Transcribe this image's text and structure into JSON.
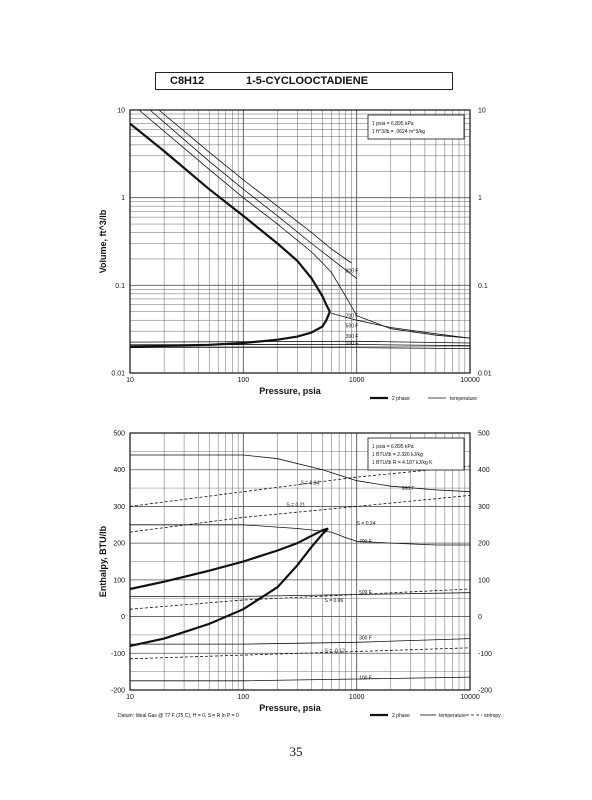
{
  "header": {
    "formula": "C8H12",
    "name": "1-5-CYCLOOCTADIENE"
  },
  "page_number": "35",
  "legend_labels": {
    "two_phase": "2 phase",
    "temperature": "temperature",
    "entropy": "entropy"
  },
  "icon_style": {
    "line_color": "#111111",
    "grid_color": "#555555"
  },
  "chart_data": [
    {
      "type": "line",
      "xlabel": "Pressure, psia",
      "ylabel": "Volume, ft^3/lb",
      "xscale": "log",
      "yscale": "log",
      "xlim": [
        10,
        10000
      ],
      "ylim": [
        0.01,
        10
      ],
      "grid": true,
      "x_ticks": [
        "10",
        "100",
        "1000",
        "10000"
      ],
      "y_ticks": [
        "0.01",
        "0.1",
        "1",
        "10"
      ],
      "y_ticks_right": [
        "0.01",
        "0.1",
        "1",
        "10"
      ],
      "note": [
        "1 psia = 6.895 kPa",
        "1 ft^3/lb = .0624 m^3/kg"
      ],
      "series": [
        {
          "name": "",
          "style": "bold",
          "x": [
            10,
            20,
            50,
            100,
            200,
            300,
            400,
            500,
            540,
            580
          ],
          "y": [
            7.0,
            3.4,
            1.25,
            0.62,
            0.3,
            0.19,
            0.12,
            0.075,
            0.06,
            0.05
          ]
        },
        {
          "name": "",
          "style": "bold",
          "x": [
            10,
            50,
            100,
            200,
            300,
            400,
            500,
            540,
            580
          ],
          "y": [
            0.02,
            0.021,
            0.022,
            0.024,
            0.026,
            0.029,
            0.034,
            0.04,
            0.05
          ]
        },
        {
          "name": "",
          "style": "thin",
          "x": [
            12,
            50,
            100,
            200,
            400,
            500,
            600,
            700,
            800,
            1000,
            2000,
            5000,
            10000
          ],
          "y": [
            10,
            2.1,
            1.0,
            0.5,
            0.24,
            0.18,
            0.14,
            0.1,
            0.075,
            0.045,
            0.032,
            0.027,
            0.025
          ]
        },
        {
          "name": "",
          "style": "thin",
          "x": [
            15,
            50,
            100,
            200,
            400,
            600,
            800,
            1000
          ],
          "y": [
            10,
            2.6,
            1.25,
            0.62,
            0.3,
            0.2,
            0.15,
            0.12
          ]
        },
        {
          "name": "",
          "style": "thin",
          "x": [
            18,
            50,
            100,
            200,
            400,
            600,
            900
          ],
          "y": [
            10,
            3.3,
            1.6,
            0.8,
            0.4,
            0.26,
            0.18
          ]
        },
        {
          "name": "",
          "style": "thin",
          "x": [
            600,
            1000,
            2000,
            5000,
            10000
          ],
          "y": [
            0.048,
            0.04,
            0.033,
            0.028,
            0.025
          ]
        },
        {
          "name": "",
          "style": "thin",
          "x": [
            10,
            1000,
            3000,
            10000
          ],
          "y": [
            0.0225,
            0.023,
            0.0225,
            0.022
          ]
        },
        {
          "name": "",
          "style": "thin",
          "x": [
            10,
            1000,
            3000,
            10000
          ],
          "y": [
            0.021,
            0.0212,
            0.0208,
            0.0205
          ]
        },
        {
          "name": "",
          "style": "thin",
          "x": [
            10,
            1000,
            10000
          ],
          "y": [
            0.0195,
            0.0195,
            0.019
          ]
        }
      ],
      "annotations": [
        {
          "text": "800 F",
          "x": 800,
          "y": 0.14
        },
        {
          "text": "700 F",
          "x": 800,
          "y": 0.043
        },
        {
          "text": "500 F",
          "x": 800,
          "y": 0.033
        },
        {
          "text": "300 F",
          "x": 800,
          "y": 0.025
        },
        {
          "text": "100 F",
          "x": 800,
          "y": 0.021
        }
      ]
    },
    {
      "type": "line",
      "xlabel": "Pressure, psia",
      "ylabel": "Enthalpy, BTU/lb",
      "xscale": "log",
      "yscale": "linear",
      "xlim": [
        10,
        10000
      ],
      "ylim": [
        -200,
        500
      ],
      "grid": true,
      "x_ticks": [
        "10",
        "100",
        "1000",
        "10000"
      ],
      "y_ticks": [
        "-200",
        "-100",
        "0",
        "100",
        "200",
        "300",
        "400",
        "500"
      ],
      "y_ticks_right": [
        "-200",
        "-100",
        "0",
        "100",
        "200",
        "300",
        "400",
        "500"
      ],
      "note": [
        "1 psia = 6.895 kPa",
        "1 BTU/lb = 2.326 kJ/kg",
        "1 BTU/lb R = 4.187 kJ/kg K"
      ],
      "datum_note": "Datum: Ideal Gas @ 77 F (25 C), H = 0, S = R ln P = 0",
      "series": [
        {
          "name": "",
          "style": "bold",
          "x": [
            10,
            20,
            50,
            100,
            200,
            300,
            400,
            500,
            560
          ],
          "y": [
            75,
            95,
            125,
            150,
            180,
            200,
            220,
            235,
            240
          ]
        },
        {
          "name": "",
          "style": "bold",
          "x": [
            10,
            20,
            50,
            100,
            200,
            300,
            400,
            500,
            560
          ],
          "y": [
            -80,
            -60,
            -20,
            20,
            80,
            140,
            190,
            225,
            240
          ]
        },
        {
          "name": "",
          "style": "thin",
          "x": [
            10,
            100,
            200,
            500,
            1000,
            2000,
            5000,
            10000
          ],
          "y": [
            440,
            440,
            430,
            400,
            370,
            355,
            345,
            340
          ]
        },
        {
          "name": "",
          "style": "thin",
          "x": [
            10,
            100,
            300,
            600,
            800,
            1000,
            2000,
            5000,
            10000
          ],
          "y": [
            250,
            250,
            240,
            230,
            215,
            205,
            200,
            195,
            195
          ]
        },
        {
          "name": "",
          "style": "thin",
          "x": [
            10,
            100,
            1000,
            10000
          ],
          "y": [
            55,
            55,
            60,
            65
          ]
        },
        {
          "name": "",
          "style": "thin",
          "x": [
            10,
            100,
            1000,
            10000
          ],
          "y": [
            -75,
            -75,
            -70,
            -60
          ]
        },
        {
          "name": "",
          "style": "thin",
          "x": [
            10,
            100,
            1000,
            10000
          ],
          "y": [
            -175,
            -175,
            -170,
            -165
          ]
        },
        {
          "name": "",
          "style": "dashed",
          "x": [
            10,
            100,
            1000,
            10000
          ],
          "y": [
            300,
            340,
            380,
            410
          ]
        },
        {
          "name": "",
          "style": "dashed",
          "x": [
            10,
            100,
            1000,
            10000
          ],
          "y": [
            230,
            270,
            300,
            330
          ]
        },
        {
          "name": "",
          "style": "dashed",
          "x": [
            10,
            100,
            1000,
            10000
          ],
          "y": [
            20,
            45,
            60,
            75
          ]
        },
        {
          "name": "",
          "style": "dashed",
          "x": [
            10,
            100,
            1000,
            10000
          ],
          "y": [
            -115,
            -105,
            -95,
            -85
          ]
        }
      ],
      "annotations": [
        {
          "text": "S = 0.34",
          "x": 320,
          "y": 360
        },
        {
          "text": "S = 0.21",
          "x": 240,
          "y": 300
        },
        {
          "text": "S = 0.24",
          "x": 1000,
          "y": 250
        },
        {
          "text": "700 F",
          "x": 1050,
          "y": 200
        },
        {
          "text": "900 F",
          "x": 2500,
          "y": 345
        },
        {
          "text": "500 F",
          "x": 1050,
          "y": 62
        },
        {
          "text": "S = 0.06",
          "x": 520,
          "y": 40
        },
        {
          "text": "300 F",
          "x": 1050,
          "y": -62
        },
        {
          "text": "S = -0.12",
          "x": 520,
          "y": -98
        },
        {
          "text": "100 F",
          "x": 1050,
          "y": -172
        }
      ]
    }
  ]
}
